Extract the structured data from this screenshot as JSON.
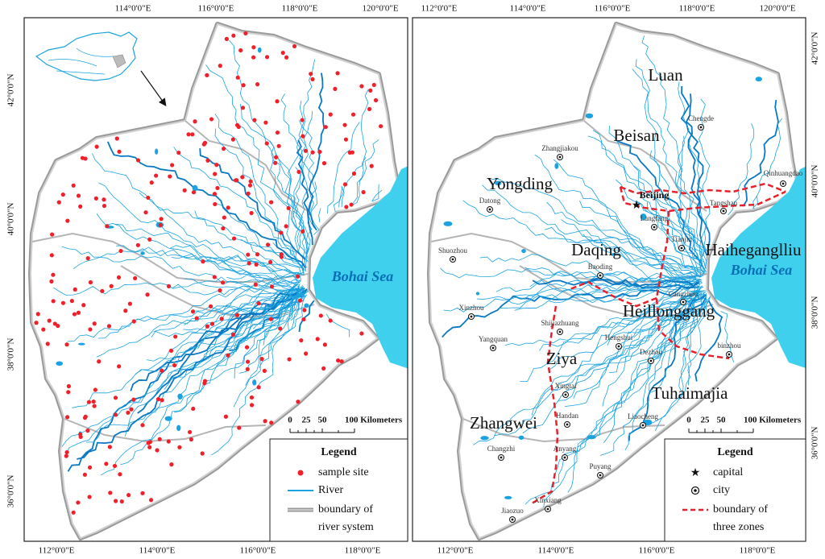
{
  "left_panel": {
    "top_axis_labels": [
      "114°0'0\"E",
      "116°0'0\"E",
      "118°0'0\"E",
      "120°0'0\"E"
    ],
    "bottom_axis_labels": [
      "112°0'0\"E",
      "114°0'0\"E",
      "116°0'0\"E",
      "118°0'0\"E"
    ],
    "side_axis_labels": [
      "42°0'0\"N",
      "40°0'0\"N",
      "38°0'0\"N",
      "36°0'0\"N"
    ],
    "sea_label": "Bohai Sea",
    "scale_labels": [
      "0",
      "25",
      "50",
      "100 Kilometers"
    ],
    "legend": {
      "title": "Legend",
      "items": [
        [
          "sample site"
        ],
        [
          "River"
        ],
        [
          "boundary of",
          "river system"
        ]
      ]
    }
  },
  "right_panel": {
    "top_axis_labels": [
      "112°0'0\"E",
      "114°0'0\"E",
      "116°0'0\"E",
      "118°0'0\"E",
      "120°0'0\"E"
    ],
    "bottom_axis_labels": [
      "112°0'0\"E",
      "114°0'0\"E",
      "116°0'0\"E",
      "118°0'0\"E"
    ],
    "side_axis_labels": [
      "42°0'0\"N",
      "40°0'0\"N",
      "38°0'0\"N",
      "36°0'0\"N"
    ],
    "sea_label": "Bohai Sea",
    "regions": [
      "Luan",
      "Beisan",
      "Yongding",
      "Daqing",
      "Haiheganglliu",
      "Heillonggang",
      "Ziya",
      "Tuhaimajia",
      "Zhangwei"
    ],
    "capital": "Beijing",
    "cities": [
      "Chengde",
      "Zhangjiakou",
      "Qinhuangdao",
      "Datong",
      "Tangshan",
      "Langfang",
      "Tianjin",
      "Shuozhou",
      "Baoding",
      "Cangzhou",
      "Xinzhou",
      "Shijiazhuang",
      "Yangquan",
      "Hengshui",
      "Dezhou",
      "binzhou",
      "Xingtai",
      "Handan",
      "Liaocheng",
      "Changzhi",
      "Anyang",
      "Puyang",
      "Xinxiang",
      "Jiaozuo"
    ],
    "scale_labels": [
      "0",
      "25",
      "50",
      "100 Kilometers"
    ],
    "legend": {
      "title": "Legend",
      "items": [
        [
          "capital"
        ],
        [
          "city"
        ],
        [
          "boundary of",
          "three zones"
        ]
      ]
    }
  }
}
